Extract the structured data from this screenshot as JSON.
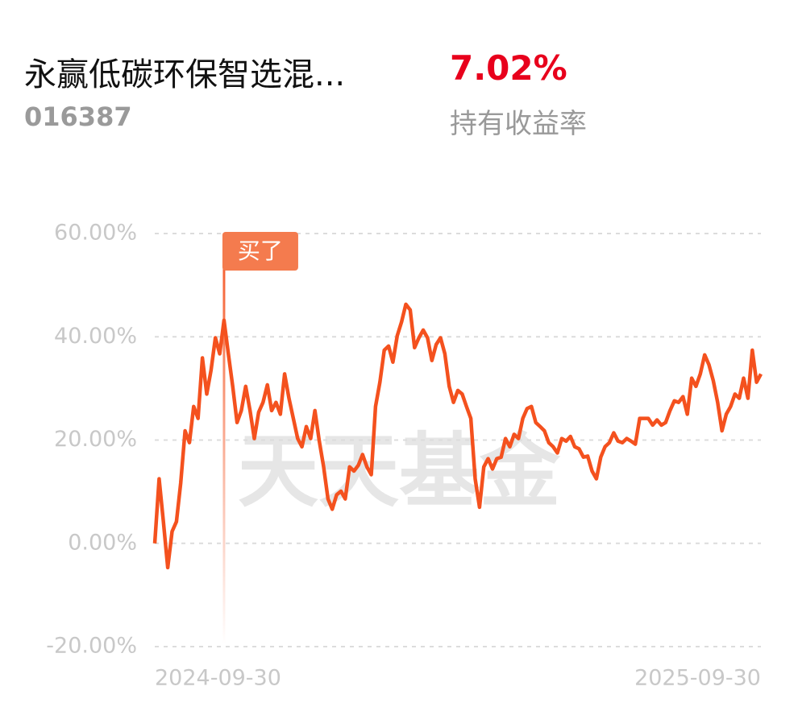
{
  "header": {
    "title": "永赢低碳环保智选混...",
    "code": "016387",
    "return_value": "7.02%",
    "return_label": "持有收益率"
  },
  "chart_data": {
    "type": "line",
    "watermark": "天天基金",
    "annotation": "买了",
    "categories": [
      "2024-09-30",
      null,
      null,
      null,
      null,
      null,
      null,
      null,
      null,
      null,
      null,
      null,
      null,
      null,
      null,
      null,
      null,
      null,
      null,
      null,
      null,
      null,
      null,
      null,
      null,
      null,
      null,
      null,
      null,
      null,
      null,
      null,
      null,
      null,
      null,
      null,
      null,
      null,
      null,
      null,
      null,
      null,
      null,
      null,
      null,
      null,
      null,
      null,
      null,
      null,
      null,
      null,
      null,
      null,
      null,
      null,
      null,
      null,
      null,
      null,
      null,
      null,
      null,
      null,
      null,
      null,
      null,
      null,
      null,
      null,
      null,
      null,
      null,
      null,
      null,
      null,
      null,
      null,
      null,
      null,
      null,
      null,
      null,
      null,
      null,
      null,
      null,
      null,
      null,
      null,
      null,
      null,
      null,
      null,
      null,
      null,
      null,
      null,
      null,
      null,
      null,
      null,
      null,
      null,
      null,
      null,
      null,
      null,
      null,
      null,
      null,
      null,
      null,
      null,
      null,
      null,
      null,
      null,
      null,
      null,
      null,
      null,
      null,
      null,
      null,
      null,
      null,
      null,
      null,
      null,
      null,
      null,
      null,
      null,
      null,
      null,
      null,
      null,
      null,
      null,
      "2025-09-30"
    ],
    "series": [
      {
        "color": "#f4511e",
        "values": [
          0,
          12.5,
          4.2,
          -4.7,
          2.3,
          4.2,
          11.7,
          21.8,
          19.5,
          26.5,
          24.2,
          35.9,
          28.9,
          33.5,
          39.8,
          36.7,
          43.2,
          36.7,
          30.4,
          23.4,
          25.7,
          30.4,
          25.7,
          20.3,
          25.4,
          27.3,
          30.7,
          25.7,
          27.3,
          25.0,
          32.8,
          28.1,
          24.2,
          20.3,
          18.7,
          22.6,
          20.3,
          25.7,
          19.8,
          14.8,
          8.6,
          6.6,
          9.4,
          10.1,
          8.6,
          14.8,
          14.0,
          15.1,
          17.2,
          14.8,
          13.3,
          26.5,
          31.2,
          37.4,
          38.2,
          35.1,
          40.2,
          42.9,
          46.3,
          45.2,
          37.9,
          39.8,
          41.3,
          39.8,
          35.4,
          38.5,
          39.8,
          36.7,
          30.4,
          27.3,
          29.6,
          28.9,
          26.5,
          24.2,
          12.5,
          7.0,
          14.8,
          16.4,
          14.4,
          16.4,
          16.7,
          20.3,
          18.7,
          21.1,
          20.3,
          24.2,
          26.1,
          26.5,
          23.4,
          22.6,
          21.8,
          19.5,
          18.7,
          17.5,
          20.3,
          19.8,
          20.7,
          18.7,
          18.3,
          16.7,
          16.9,
          14.0,
          12.5,
          16.7,
          18.7,
          19.5,
          21.4,
          19.8,
          19.5,
          20.3,
          19.8,
          19.2,
          24.2,
          24.2,
          24.2,
          22.9,
          23.9,
          22.9,
          23.4,
          25.7,
          27.6,
          27.3,
          28.4,
          25.0,
          32.0,
          30.4,
          32.8,
          36.5,
          34.6,
          31.5,
          27.3,
          21.8,
          25.0,
          26.5,
          28.9,
          28.1,
          32.0,
          28.1,
          37.4,
          31.2,
          32.8
        ]
      }
    ],
    "ylim": [
      -20,
      60
    ],
    "yticks": [
      {
        "value": -20,
        "label": "-20.00%"
      },
      {
        "value": 0,
        "label": "0.00%"
      },
      {
        "value": 20,
        "label": "20.00%"
      },
      {
        "value": 40,
        "label": "40.00%"
      },
      {
        "value": 60,
        "label": "60.00%"
      }
    ],
    "grid": true
  }
}
